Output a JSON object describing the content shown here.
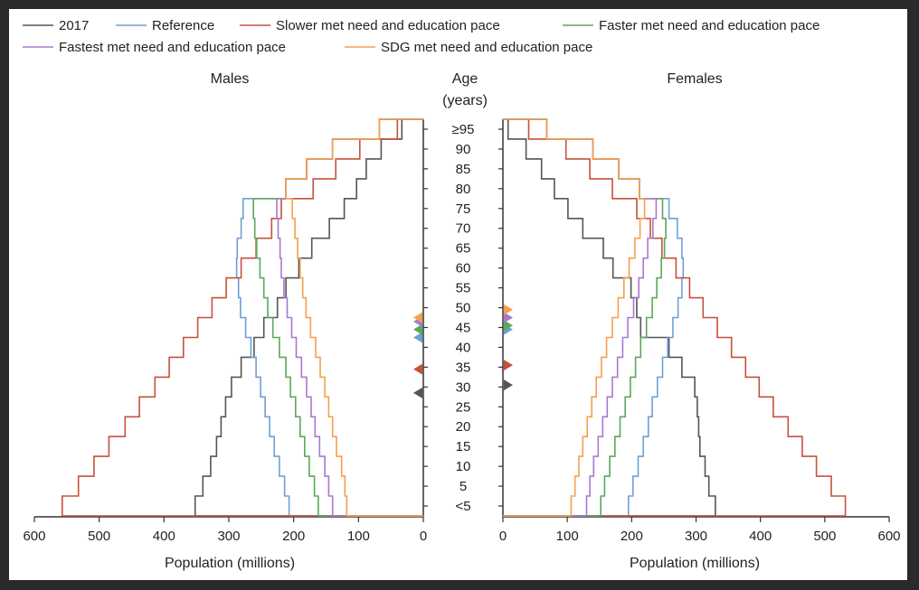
{
  "chart_data": {
    "type": "line",
    "subtype": "population-pyramid-step",
    "panels": [
      "Males",
      "Females"
    ],
    "center_axis_label": [
      "Age",
      "(years)"
    ],
    "age_groups": [
      "<5",
      "5",
      "10",
      "15",
      "20",
      "25",
      "30",
      "35",
      "40",
      "45",
      "50",
      "55",
      "60",
      "65",
      "70",
      "75",
      "80",
      "85",
      "90",
      "≥95"
    ],
    "xlabel": "Population (millions)",
    "xlim": [
      0,
      600
    ],
    "xticks": [
      "600",
      "500",
      "400",
      "300",
      "200",
      "100",
      "0"
    ],
    "xticks_right": [
      "0",
      "100",
      "200",
      "300",
      "400",
      "500",
      "600"
    ],
    "legend": [
      {
        "name": "2017",
        "color": "#555555"
      },
      {
        "name": "Reference",
        "color": "#6e9fd6"
      },
      {
        "name": "Slower met need and education pace",
        "color": "#c8503c"
      },
      {
        "name": "Faster met need and education pace",
        "color": "#5aa85a"
      },
      {
        "name": "Fastest met need and education pace",
        "color": "#a879cf"
      },
      {
        "name": "SDG met need and education pace",
        "color": "#f5a04e"
      }
    ],
    "series": [
      {
        "name": "2017",
        "color": "#555555",
        "males": [
          352,
          340,
          328,
          319,
          312,
          305,
          296,
          281,
          261,
          246,
          225,
          212,
          192,
          172,
          145,
          122,
          103,
          88,
          65,
          33
        ],
        "females": [
          330,
          320,
          314,
          306,
          304,
          302,
          298,
          278,
          258,
          214,
          208,
          199,
          171,
          156,
          124,
          101,
          80,
          60,
          36,
          8
        ],
        "median_age_males": 31,
        "median_age_females": 33
      },
      {
        "name": "Reference",
        "color": "#6e9fd6",
        "males": [
          207,
          214,
          222,
          230,
          237,
          244,
          251,
          258,
          266,
          274,
          282,
          285,
          288,
          287,
          281,
          278,
          212,
          180,
          140,
          68
        ],
        "females": [
          195,
          202,
          210,
          218,
          226,
          232,
          240,
          248,
          256,
          264,
          272,
          278,
          280,
          278,
          271,
          258,
          212,
          180,
          140,
          68
        ],
        "median_age_males": 45,
        "median_age_females": 47
      },
      {
        "name": "Slower met need and education pace",
        "color": "#c8503c",
        "males": [
          557,
          532,
          508,
          485,
          460,
          438,
          414,
          392,
          370,
          348,
          326,
          304,
          281,
          258,
          234,
          219,
          170,
          135,
          98,
          40
        ],
        "females": [
          532,
          510,
          487,
          465,
          443,
          420,
          398,
          377,
          355,
          333,
          311,
          290,
          269,
          247,
          229,
          208,
          170,
          135,
          98,
          40
        ],
        "median_age_males": 37,
        "median_age_females": 38
      },
      {
        "name": "Faster met need and education pace",
        "color": "#5aa85a",
        "males": [
          162,
          168,
          176,
          183,
          190,
          197,
          205,
          212,
          222,
          232,
          240,
          246,
          252,
          257,
          260,
          262,
          212,
          180,
          140,
          68
        ],
        "females": [
          152,
          158,
          166,
          174,
          182,
          190,
          198,
          206,
          214,
          223,
          232,
          239,
          246,
          251,
          253,
          248,
          212,
          180,
          140,
          68
        ],
        "median_age_males": 47,
        "median_age_females": 48
      },
      {
        "name": "Fastest met need and education pace",
        "color": "#a879cf",
        "males": [
          140,
          146,
          152,
          160,
          167,
          173,
          180,
          188,
          196,
          203,
          210,
          215,
          219,
          221,
          224,
          226,
          212,
          180,
          140,
          68
        ],
        "females": [
          130,
          135,
          141,
          148,
          155,
          162,
          170,
          178,
          186,
          194,
          203,
          211,
          218,
          225,
          233,
          238,
          212,
          180,
          140,
          68
        ],
        "median_age_males": 49,
        "median_age_females": 50
      },
      {
        "name": "SDG met need and education pace",
        "color": "#f5a04e",
        "males": [
          118,
          121,
          126,
          134,
          140,
          146,
          152,
          159,
          166,
          174,
          181,
          186,
          190,
          194,
          198,
          202,
          212,
          180,
          140,
          68
        ],
        "females": [
          106,
          112,
          118,
          124,
          131,
          138,
          145,
          153,
          161,
          170,
          179,
          188,
          196,
          205,
          213,
          220,
          212,
          180,
          140,
          68
        ],
        "median_age_males": 50,
        "median_age_females": 52
      }
    ]
  }
}
